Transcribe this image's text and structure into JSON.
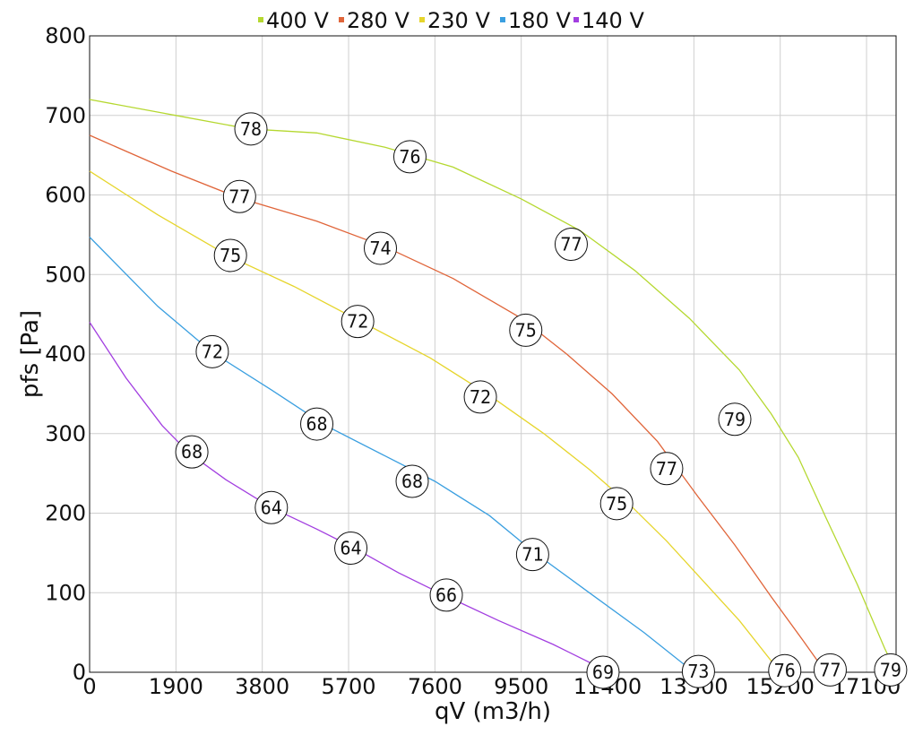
{
  "chart_data": {
    "type": "line",
    "xlabel": "qV (m3/h)",
    "ylabel": "pfs [Pa]",
    "xlim": [
      0,
      17750
    ],
    "ylim": [
      0,
      800
    ],
    "x_ticks": [
      "0",
      "1900",
      "3800",
      "5700",
      "7600",
      "9500",
      "11400",
      "13300",
      "15200",
      "17100"
    ],
    "x_tick_values": [
      0,
      1900,
      3800,
      5700,
      7600,
      9500,
      11400,
      13300,
      15200,
      17100
    ],
    "y_ticks": [
      "0",
      "100",
      "200",
      "300",
      "400",
      "500",
      "600",
      "700",
      "800"
    ],
    "y_tick_values": [
      0,
      100,
      200,
      300,
      400,
      500,
      600,
      700,
      800
    ],
    "grid": true,
    "legend_position": "top",
    "series": [
      {
        "name": "400 V",
        "color": "#b5d830",
        "points": [
          [
            0,
            720
          ],
          [
            1900,
            700
          ],
          [
            3500,
            683
          ],
          [
            5000,
            678
          ],
          [
            6500,
            660
          ],
          [
            8000,
            635
          ],
          [
            9500,
            595
          ],
          [
            10800,
            555
          ],
          [
            12000,
            505
          ],
          [
            13200,
            445
          ],
          [
            14300,
            380
          ],
          [
            15000,
            325
          ],
          [
            15600,
            270
          ],
          [
            16200,
            195
          ],
          [
            16900,
            110
          ],
          [
            17500,
            30
          ],
          [
            17750,
            0
          ]
        ],
        "labels": [
          {
            "x": 3550,
            "y": 683,
            "text": "78"
          },
          {
            "x": 7050,
            "y": 648,
            "text": "76"
          },
          {
            "x": 10600,
            "y": 538,
            "text": "77"
          },
          {
            "x": 14200,
            "y": 318,
            "text": "79"
          },
          {
            "x": 17630,
            "y": 3,
            "text": "79"
          }
        ]
      },
      {
        "name": "280 V",
        "color": "#e0653a",
        "points": [
          [
            0,
            675
          ],
          [
            1800,
            630
          ],
          [
            3300,
            596
          ],
          [
            5000,
            567
          ],
          [
            6500,
            535
          ],
          [
            8000,
            495
          ],
          [
            9500,
            445
          ],
          [
            10500,
            400
          ],
          [
            11500,
            350
          ],
          [
            12500,
            290
          ],
          [
            13400,
            220
          ],
          [
            14200,
            160
          ],
          [
            15000,
            95
          ],
          [
            15700,
            40
          ],
          [
            16200,
            0
          ]
        ],
        "labels": [
          {
            "x": 3300,
            "y": 598,
            "text": "77"
          },
          {
            "x": 6400,
            "y": 533,
            "text": "74"
          },
          {
            "x": 9600,
            "y": 430,
            "text": "75"
          },
          {
            "x": 12700,
            "y": 256,
            "text": "77"
          },
          {
            "x": 16300,
            "y": 3,
            "text": "77"
          }
        ]
      },
      {
        "name": "230 V",
        "color": "#e6d52c",
        "points": [
          [
            0,
            630
          ],
          [
            1500,
            575
          ],
          [
            3100,
            522
          ],
          [
            4500,
            485
          ],
          [
            6000,
            440
          ],
          [
            7500,
            395
          ],
          [
            8800,
            348
          ],
          [
            10000,
            300
          ],
          [
            11000,
            255
          ],
          [
            11900,
            210
          ],
          [
            12700,
            165
          ],
          [
            13500,
            115
          ],
          [
            14300,
            65
          ],
          [
            15200,
            0
          ]
        ],
        "labels": [
          {
            "x": 3100,
            "y": 524,
            "text": "75"
          },
          {
            "x": 5900,
            "y": 441,
            "text": "72"
          },
          {
            "x": 8600,
            "y": 346,
            "text": "72"
          },
          {
            "x": 11600,
            "y": 212,
            "text": "75"
          },
          {
            "x": 15300,
            "y": 2,
            "text": "76"
          }
        ]
      },
      {
        "name": "180 V",
        "color": "#3a9fe0",
        "points": [
          [
            0,
            547
          ],
          [
            1500,
            460
          ],
          [
            2700,
            402
          ],
          [
            4000,
            355
          ],
          [
            5200,
            310
          ],
          [
            6500,
            272
          ],
          [
            7600,
            240
          ],
          [
            8800,
            197
          ],
          [
            9800,
            150
          ],
          [
            11000,
            100
          ],
          [
            12200,
            50
          ],
          [
            13300,
            0
          ]
        ],
        "labels": [
          {
            "x": 2700,
            "y": 403,
            "text": "72"
          },
          {
            "x": 5000,
            "y": 312,
            "text": "68"
          },
          {
            "x": 7100,
            "y": 240,
            "text": "68"
          },
          {
            "x": 9750,
            "y": 148,
            "text": "71"
          },
          {
            "x": 13400,
            "y": 1,
            "text": "73"
          }
        ]
      },
      {
        "name": "140 V",
        "color": "#a23ee0",
        "points": [
          [
            0,
            440
          ],
          [
            800,
            370
          ],
          [
            1600,
            310
          ],
          [
            2200,
            275
          ],
          [
            3000,
            242
          ],
          [
            4000,
            207
          ],
          [
            5000,
            180
          ],
          [
            5800,
            157
          ],
          [
            6800,
            125
          ],
          [
            7800,
            97
          ],
          [
            9000,
            65
          ],
          [
            10200,
            35
          ],
          [
            11300,
            4
          ]
        ],
        "labels": [
          {
            "x": 2250,
            "y": 277,
            "text": "68"
          },
          {
            "x": 4000,
            "y": 207,
            "text": "64"
          },
          {
            "x": 5750,
            "y": 156,
            "text": "64"
          },
          {
            "x": 7850,
            "y": 97,
            "text": "66"
          },
          {
            "x": 11300,
            "y": 0,
            "text": "69"
          }
        ]
      }
    ]
  }
}
